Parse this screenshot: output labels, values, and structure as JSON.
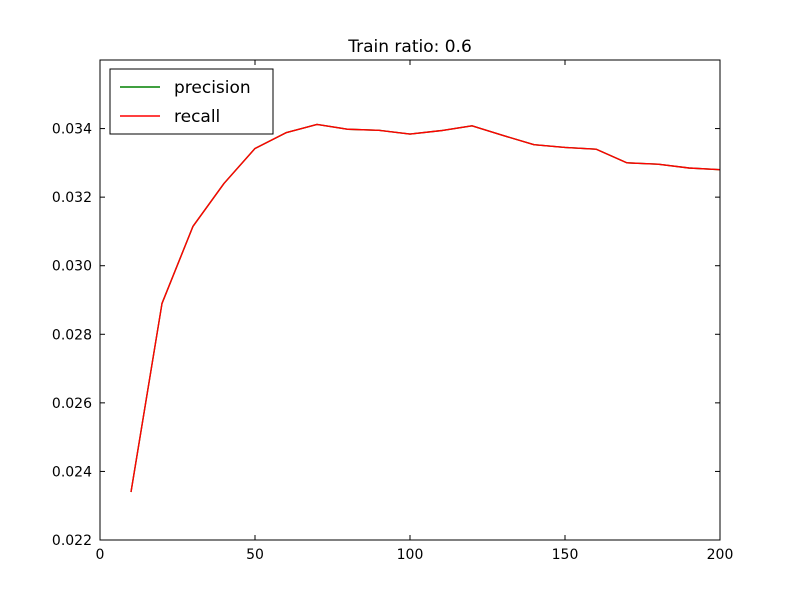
{
  "chart_data": {
    "type": "line",
    "title": "Train ratio: 0.6",
    "xlabel": "",
    "ylabel": "",
    "xlim": [
      0,
      200
    ],
    "ylim": [
      0.022,
      0.036
    ],
    "xticks": [
      "0",
      "50",
      "100",
      "150",
      "200"
    ],
    "yticks": [
      "0.022",
      "0.024",
      "0.026",
      "0.028",
      "0.030",
      "0.032",
      "0.034"
    ],
    "grid": false,
    "legend": {
      "placement": "top-left"
    },
    "x": [
      10,
      20,
      30,
      40,
      50,
      60,
      70,
      80,
      90,
      100,
      110,
      120,
      130,
      140,
      150,
      160,
      170,
      180,
      190,
      200
    ],
    "series": [
      {
        "name": "precision",
        "color": "#008000",
        "values": [
          0.0234,
          0.0289,
          0.03115,
          0.0324,
          0.03342,
          0.03388,
          0.03412,
          0.03398,
          0.03395,
          0.03384,
          0.03394,
          0.03408,
          0.0338,
          0.03353,
          0.03345,
          0.0334,
          0.033,
          0.03296,
          0.03285,
          0.0328
        ]
      },
      {
        "name": "recall",
        "color": "#ff0000",
        "values": [
          0.0234,
          0.0289,
          0.03115,
          0.0324,
          0.03342,
          0.03388,
          0.03412,
          0.03398,
          0.03395,
          0.03384,
          0.03394,
          0.03408,
          0.0338,
          0.03353,
          0.03345,
          0.0334,
          0.033,
          0.03296,
          0.03285,
          0.0328
        ]
      }
    ]
  }
}
